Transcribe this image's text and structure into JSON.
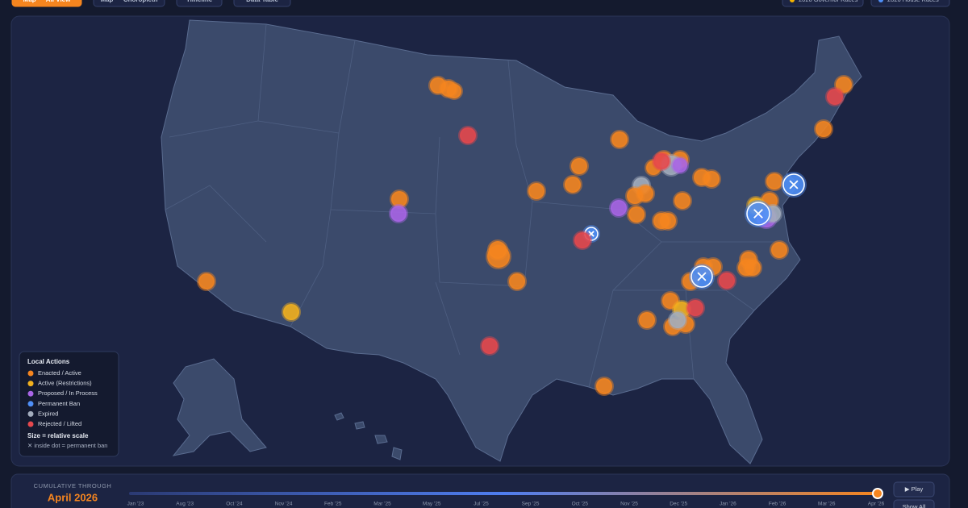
{
  "nav": {
    "tabs": [
      "Map — All View",
      "Map — Choropleth",
      "Timeline",
      "Data Table"
    ],
    "toggles": [
      {
        "label": "2026 Governor Races",
        "color": "#f5b300"
      },
      {
        "label": "2026 House Races",
        "color": "#4f8ff7"
      }
    ]
  },
  "legend": {
    "title": "Local Actions",
    "items": [
      {
        "label": "Enacted / Active",
        "color": "#f5851f"
      },
      {
        "label": "Active (Restrictions)",
        "color": "#f2b01e"
      },
      {
        "label": "Proposed / In Process",
        "color": "#a965e6"
      },
      {
        "label": "Permanent Ban",
        "color": "#4f8ff7"
      },
      {
        "label": "Expired",
        "color": "#a3adbd"
      },
      {
        "label": "Rejected / Lifted",
        "color": "#e5484d"
      }
    ],
    "size_note": "Size = relative scale",
    "ban_note": "✕ inside dot = permanent ban"
  },
  "timeline": {
    "caption": "CUMULATIVE THROUGH",
    "current": "April 2026",
    "labels": [
      "Jan '23",
      "Aug '23",
      "Oct '24",
      "Nov '24",
      "Feb '25",
      "Mar '25",
      "May '25",
      "Jul '25",
      "Sep '25",
      "Oct '25",
      "Nov '25",
      "Dec '25",
      "Jan '26",
      "Feb '26",
      "Mar '26",
      "Apr '26"
    ],
    "buttons": [
      "▶ Play",
      "Show All"
    ]
  }
}
